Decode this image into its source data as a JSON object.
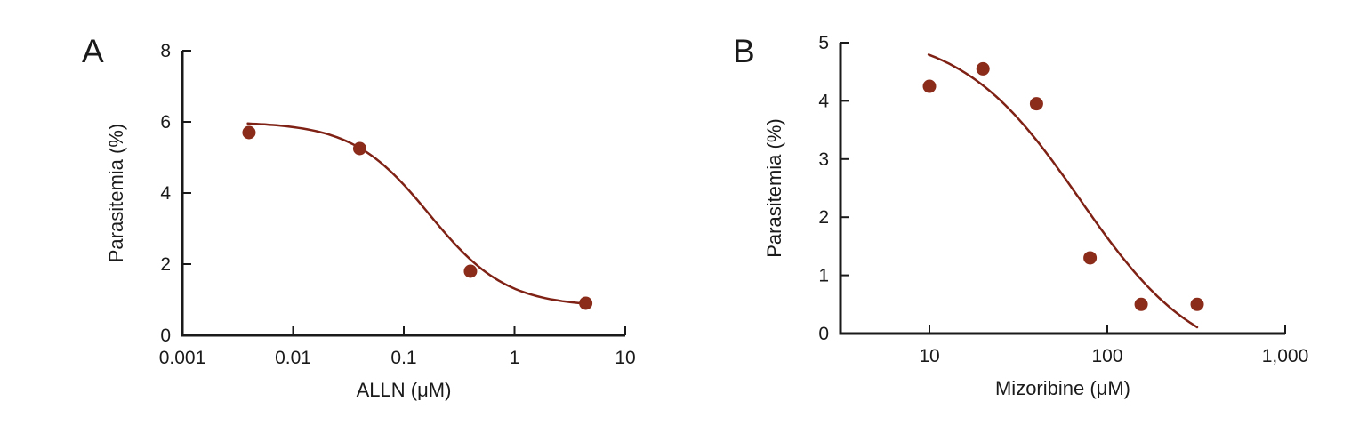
{
  "figure": {
    "background": "#ffffff",
    "axis_color": "#1a1a1a",
    "text_color": "#1a1a1a",
    "point_color": "#8b2b1a",
    "curve_color": "#7f2114"
  },
  "chart_data": [
    {
      "type": "scatter",
      "panel_label": "A",
      "title": "",
      "xlabel": "ALLN (μM)",
      "ylabel": "Parasitemia (%)",
      "xscale": "log",
      "yscale": "linear",
      "xlim": [
        0.001,
        10
      ],
      "ylim": [
        0,
        8
      ],
      "grid": false,
      "legend": null,
      "xticks": [
        {
          "value": 0.001,
          "label": "0.001"
        },
        {
          "value": 0.01,
          "label": "0.01"
        },
        {
          "value": 0.1,
          "label": "0.1"
        },
        {
          "value": 1,
          "label": "1"
        },
        {
          "value": 10,
          "label": "10"
        }
      ],
      "yticks": [
        {
          "value": 0,
          "label": "0"
        },
        {
          "value": 2,
          "label": "2"
        },
        {
          "value": 4,
          "label": "4"
        },
        {
          "value": 6,
          "label": "6"
        },
        {
          "value": 8,
          "label": "8"
        }
      ],
      "points": [
        {
          "x": 0.004,
          "y": 5.7
        },
        {
          "x": 0.04,
          "y": 5.25
        },
        {
          "x": 0.4,
          "y": 1.8
        },
        {
          "x": 4.4,
          "y": 0.9
        }
      ],
      "fit_curve": {
        "model": "sigmoid-dose-response",
        "top": 6.0,
        "bottom": 0.8,
        "ec50": 0.17,
        "hill": 1.25,
        "x_start": 0.0039,
        "x_end": 4.6
      }
    },
    {
      "type": "scatter",
      "panel_label": "B",
      "title": "",
      "xlabel": "Mizoribine (μM)",
      "ylabel": "Parasitemia (%)",
      "xscale": "log",
      "yscale": "linear",
      "xlim": [
        3.162,
        1000
      ],
      "ylim": [
        0,
        5
      ],
      "grid": false,
      "legend": null,
      "xticks": [
        {
          "value": 10,
          "label": "10"
        },
        {
          "value": 100,
          "label": "100"
        },
        {
          "value": 1000,
          "label": "1,000"
        }
      ],
      "yticks": [
        {
          "value": 0,
          "label": "0"
        },
        {
          "value": 1,
          "label": "1"
        },
        {
          "value": 2,
          "label": "2"
        },
        {
          "value": 3,
          "label": "3"
        },
        {
          "value": 4,
          "label": "4"
        },
        {
          "value": 5,
          "label": "5"
        }
      ],
      "points": [
        {
          "x": 10,
          "y": 4.25
        },
        {
          "x": 20,
          "y": 4.55
        },
        {
          "x": 40,
          "y": 3.95
        },
        {
          "x": 80,
          "y": 1.3
        },
        {
          "x": 155,
          "y": 0.5
        },
        {
          "x": 320,
          "y": 0.5
        }
      ],
      "fit_curve": {
        "model": "sigmoid-dose-response",
        "top": 5.22,
        "bottom": -0.6,
        "ec50": 70,
        "hill": 1.3,
        "x_start": 9.9,
        "x_end": 320
      }
    }
  ]
}
